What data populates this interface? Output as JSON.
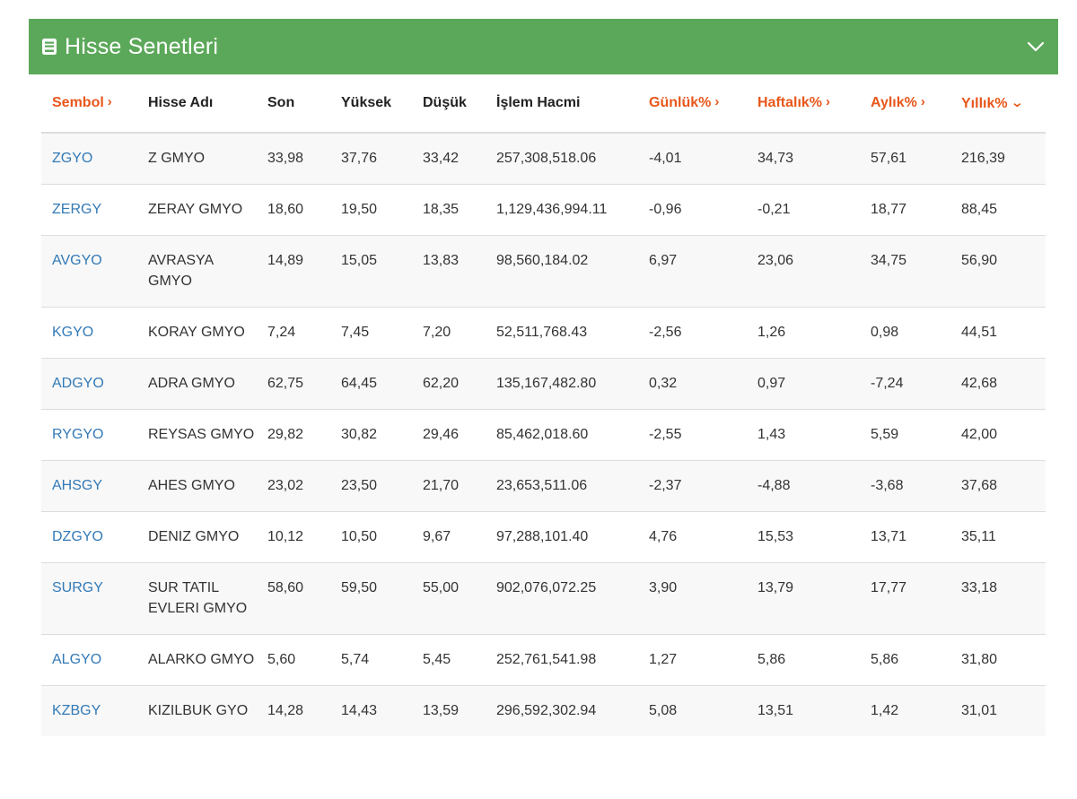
{
  "panel": {
    "title": "Hisse Senetleri",
    "header_color": "#5ca85a",
    "icon": "book-icon",
    "toggle_icon": "chevron-down-icon"
  },
  "table": {
    "accent_color": "#e8571a",
    "link_color": "#337ab7",
    "columns": [
      {
        "key": "sembol",
        "label": "Sembol",
        "sortable": true,
        "sort_glyph": "›"
      },
      {
        "key": "hisse_adi",
        "label": "Hisse Adı",
        "sortable": false,
        "sort_glyph": ""
      },
      {
        "key": "son",
        "label": "Son",
        "sortable": false,
        "sort_glyph": ""
      },
      {
        "key": "yuksek",
        "label": "Yüksek",
        "sortable": false,
        "sort_glyph": ""
      },
      {
        "key": "dusuk",
        "label": "Düşük",
        "sortable": false,
        "sort_glyph": ""
      },
      {
        "key": "islem_hacmi",
        "label": "İşlem Hacmi",
        "sortable": false,
        "sort_glyph": ""
      },
      {
        "key": "gunluk",
        "label": "Günlük%",
        "sortable": true,
        "sort_glyph": "›"
      },
      {
        "key": "haftalik",
        "label": "Haftalık%",
        "sortable": true,
        "sort_glyph": "›"
      },
      {
        "key": "aylik",
        "label": "Aylık%",
        "sortable": true,
        "sort_glyph": "›"
      },
      {
        "key": "yillik",
        "label": "Yıllık%",
        "sortable": true,
        "sort_glyph": "⌄"
      }
    ],
    "rows": [
      {
        "sembol": "ZGYO",
        "hisse_adi": "Z GMYO",
        "son": "33,98",
        "yuksek": "37,76",
        "dusuk": "33,42",
        "islem_hacmi": "257,308,518.06",
        "gunluk": "-4,01",
        "haftalik": "34,73",
        "aylik": "57,61",
        "yillik": "216,39"
      },
      {
        "sembol": "ZERGY",
        "hisse_adi": "ZERAY GMYO",
        "son": "18,60",
        "yuksek": "19,50",
        "dusuk": "18,35",
        "islem_hacmi": "1,129,436,994.11",
        "gunluk": "-0,96",
        "haftalik": "-0,21",
        "aylik": "18,77",
        "yillik": "88,45"
      },
      {
        "sembol": "AVGYO",
        "hisse_adi": "AVRASYA GMYO",
        "son": "14,89",
        "yuksek": "15,05",
        "dusuk": "13,83",
        "islem_hacmi": "98,560,184.02",
        "gunluk": "6,97",
        "haftalik": "23,06",
        "aylik": "34,75",
        "yillik": "56,90"
      },
      {
        "sembol": "KGYO",
        "hisse_adi": "KORAY GMYO",
        "son": "7,24",
        "yuksek": "7,45",
        "dusuk": "7,20",
        "islem_hacmi": "52,511,768.43",
        "gunluk": "-2,56",
        "haftalik": "1,26",
        "aylik": "0,98",
        "yillik": "44,51"
      },
      {
        "sembol": "ADGYO",
        "hisse_adi": "ADRA GMYO",
        "son": "62,75",
        "yuksek": "64,45",
        "dusuk": "62,20",
        "islem_hacmi": "135,167,482.80",
        "gunluk": "0,32",
        "haftalik": "0,97",
        "aylik": "-7,24",
        "yillik": "42,68"
      },
      {
        "sembol": "RYGYO",
        "hisse_adi": "REYSAS GMYO",
        "son": "29,82",
        "yuksek": "30,82",
        "dusuk": "29,46",
        "islem_hacmi": "85,462,018.60",
        "gunluk": "-2,55",
        "haftalik": "1,43",
        "aylik": "5,59",
        "yillik": "42,00"
      },
      {
        "sembol": "AHSGY",
        "hisse_adi": "AHES GMYO",
        "son": "23,02",
        "yuksek": "23,50",
        "dusuk": "21,70",
        "islem_hacmi": "23,653,511.06",
        "gunluk": "-2,37",
        "haftalik": "-4,88",
        "aylik": "-3,68",
        "yillik": "37,68"
      },
      {
        "sembol": "DZGYO",
        "hisse_adi": "DENIZ GMYO",
        "son": "10,12",
        "yuksek": "10,50",
        "dusuk": "9,67",
        "islem_hacmi": "97,288,101.40",
        "gunluk": "4,76",
        "haftalik": "15,53",
        "aylik": "13,71",
        "yillik": "35,11"
      },
      {
        "sembol": "SURGY",
        "hisse_adi": "SUR TATIL EVLERI GMYO",
        "son": "58,60",
        "yuksek": "59,50",
        "dusuk": "55,00",
        "islem_hacmi": "902,076,072.25",
        "gunluk": "3,90",
        "haftalik": "13,79",
        "aylik": "17,77",
        "yillik": "33,18"
      },
      {
        "sembol": "ALGYO",
        "hisse_adi": "ALARKO GMYO",
        "son": "5,60",
        "yuksek": "5,74",
        "dusuk": "5,45",
        "islem_hacmi": "252,761,541.98",
        "gunluk": "1,27",
        "haftalik": "5,86",
        "aylik": "5,86",
        "yillik": "31,80"
      },
      {
        "sembol": "KZBGY",
        "hisse_adi": "KIZILBUK GYO",
        "son": "14,28",
        "yuksek": "14,43",
        "dusuk": "13,59",
        "islem_hacmi": "296,592,302.94",
        "gunluk": "5,08",
        "haftalik": "13,51",
        "aylik": "1,42",
        "yillik": "31,01"
      }
    ]
  }
}
